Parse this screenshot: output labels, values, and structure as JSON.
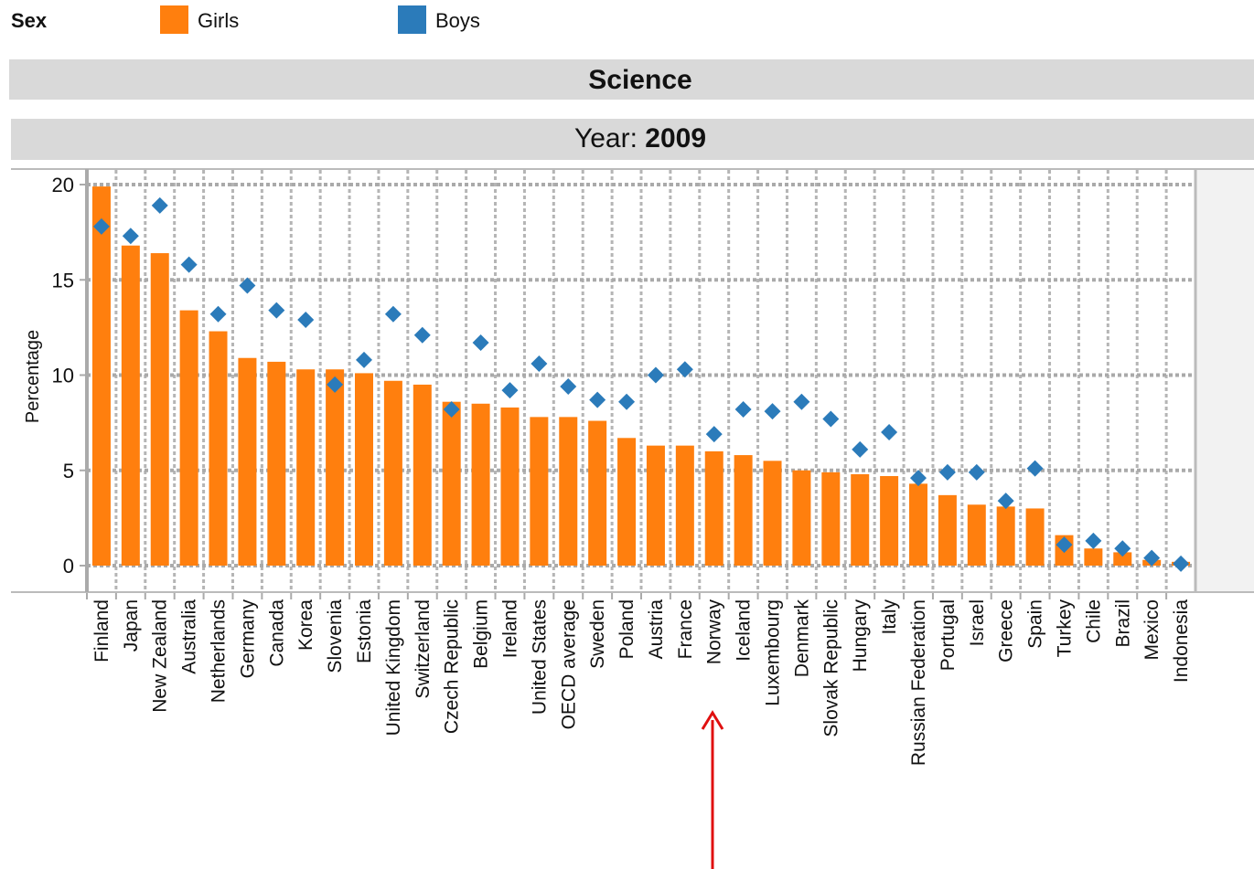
{
  "chart_data": {
    "type": "bar",
    "legend_title": "Sex",
    "title": "Science",
    "subtitle_label": "Year:",
    "subtitle_value": "2009",
    "ylabel": "Percentage",
    "ylim": [
      0,
      20
    ],
    "yticks": [
      0,
      5,
      10,
      15,
      20
    ],
    "grid": true,
    "categories": [
      "Finland",
      "Japan",
      "New Zealand",
      "Australia",
      "Netherlands",
      "Germany",
      "Canada",
      "Korea",
      "Slovenia",
      "Estonia",
      "United Kingdom",
      "Switzerland",
      "Czech Republic",
      "Belgium",
      "Ireland",
      "United States",
      "OECD average",
      "Sweden",
      "Poland",
      "Austria",
      "France",
      "Norway",
      "Iceland",
      "Luxembourg",
      "Denmark",
      "Slovak Republic",
      "Hungary",
      "Italy",
      "Russian Federation",
      "Portugal",
      "Israel",
      "Greece",
      "Spain",
      "Turkey",
      "Chile",
      "Brazil",
      "Mexico",
      "Indonesia"
    ],
    "series": [
      {
        "name": "Girls",
        "color": "#ff7f0e",
        "mark": "bar",
        "values": [
          19.9,
          16.8,
          16.4,
          13.4,
          12.3,
          10.9,
          10.7,
          10.3,
          10.3,
          10.1,
          9.7,
          9.5,
          8.6,
          8.5,
          8.3,
          7.8,
          7.8,
          7.6,
          6.7,
          6.3,
          6.3,
          6.0,
          5.8,
          5.5,
          5.0,
          4.9,
          4.8,
          4.7,
          4.3,
          3.7,
          3.2,
          3.1,
          3.0,
          1.6,
          0.9,
          0.7,
          0.3,
          0.2
        ]
      },
      {
        "name": "Boys",
        "color": "#2b7bba",
        "mark": "diamond",
        "values": [
          17.8,
          17.3,
          18.9,
          15.8,
          13.2,
          14.7,
          13.4,
          12.9,
          9.5,
          10.8,
          13.2,
          12.1,
          8.2,
          11.7,
          9.2,
          10.6,
          9.4,
          8.7,
          8.6,
          10.0,
          10.3,
          6.9,
          8.2,
          8.1,
          8.6,
          7.7,
          6.1,
          7.0,
          4.6,
          4.9,
          4.9,
          3.4,
          5.1,
          1.1,
          1.3,
          0.9,
          0.4,
          0.1
        ]
      }
    ]
  }
}
